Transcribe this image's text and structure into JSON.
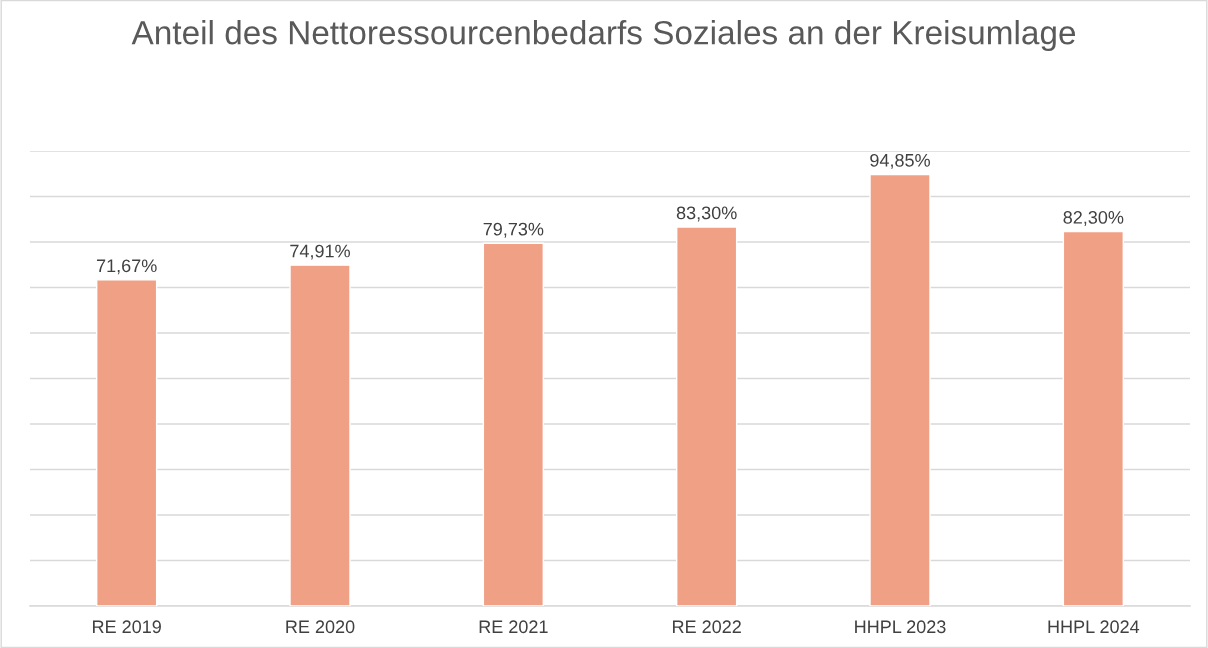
{
  "chart_data": {
    "type": "bar",
    "title": "Anteil des Nettoressourcenbedarfs Soziales an der Kreisumlage",
    "categories": [
      "RE 2019",
      "RE 2020",
      "RE 2021",
      "RE 2022",
      "HHPL 2023",
      "HHPL 2024"
    ],
    "values": [
      71.67,
      74.91,
      79.73,
      83.3,
      94.85,
      82.3
    ],
    "value_labels": [
      "71,67%",
      "74,91%",
      "79,73%",
      "83,30%",
      "94,85%",
      "82,30%"
    ],
    "color": "#f0a085",
    "ylim": [
      0,
      100
    ],
    "yticks": [
      {
        "value": 0,
        "label": null
      },
      {
        "value": 10,
        "label": null
      },
      {
        "value": 20,
        "label": null
      },
      {
        "value": 30,
        "label": null
      },
      {
        "value": 40,
        "label": null
      },
      {
        "value": 50,
        "label": null
      },
      {
        "value": 60,
        "label": null
      },
      {
        "value": 70,
        "label": null
      },
      {
        "value": 80,
        "label": null
      },
      {
        "value": 90,
        "label": null
      },
      {
        "value": 100,
        "label": null
      }
    ],
    "grid": "y",
    "tick_labels": "x",
    "legend": false
  }
}
